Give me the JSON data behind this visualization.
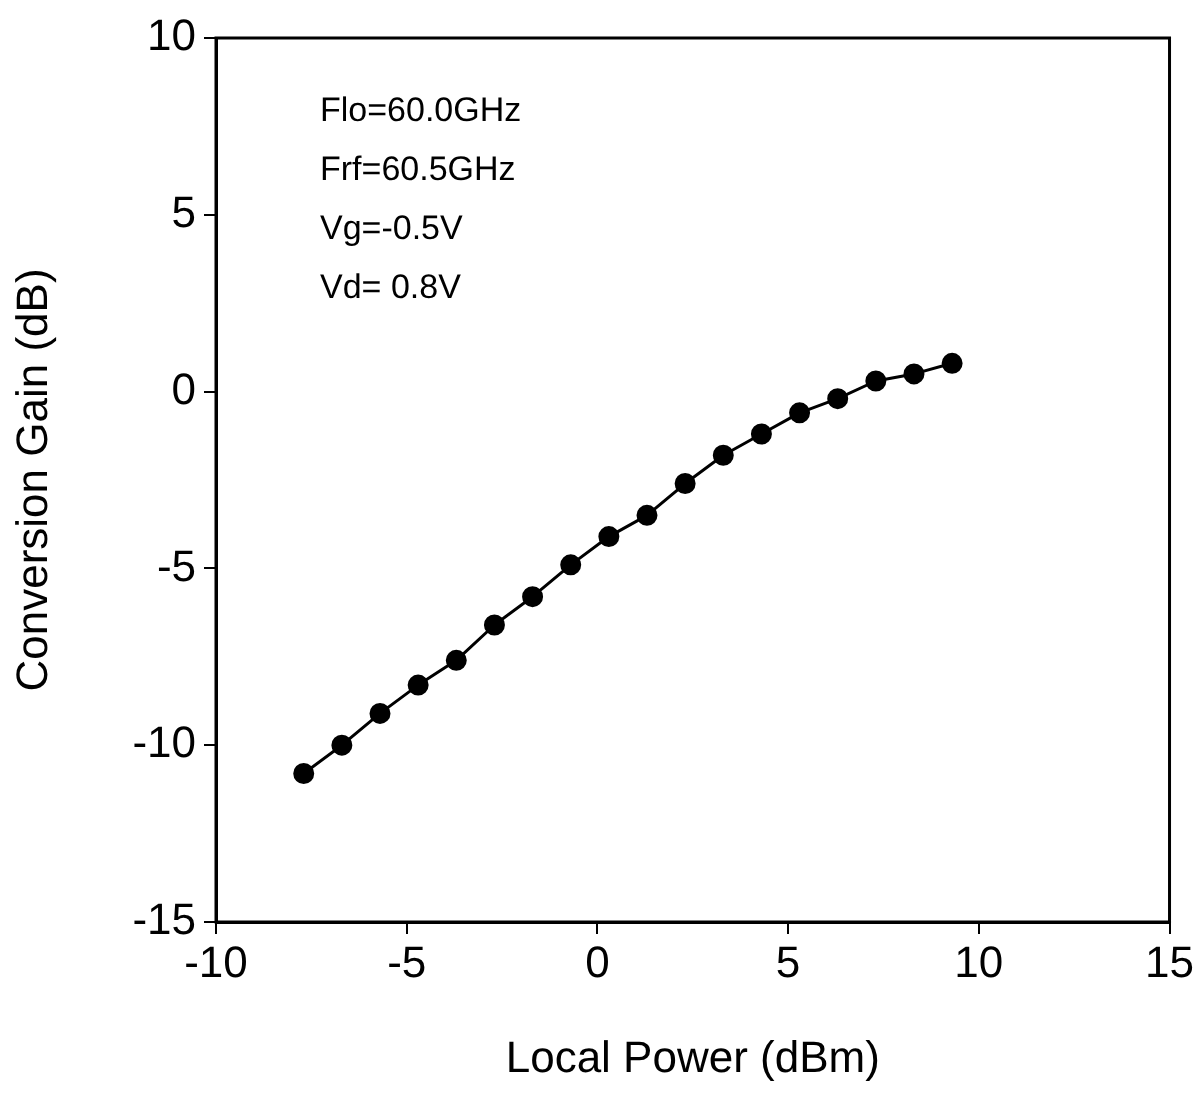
{
  "chart_data": {
    "type": "line",
    "xlabel": "Local Power (dBm)",
    "ylabel": "Conversion Gain (dB)",
    "annotations": [
      "Flo=60.0GHz",
      "Frf=60.5GHz",
      "Vg=-0.5V",
      "Vd= 0.8V"
    ],
    "x": [
      -7.7,
      -6.7,
      -5.7,
      -4.7,
      -3.7,
      -2.7,
      -1.7,
      -0.7,
      0.3,
      1.3,
      2.3,
      3.3,
      4.3,
      5.3,
      6.3,
      7.3,
      8.3,
      9.3
    ],
    "series": [
      {
        "color": "#000000",
        "values": [
          -10.8,
          -10.0,
          -9.1,
          -8.3,
          -7.6,
          -6.6,
          -5.8,
          -4.9,
          -4.1,
          -3.5,
          -2.6,
          -1.8,
          -1.2,
          -0.6,
          -0.2,
          0.3,
          0.5,
          0.8
        ]
      }
    ],
    "xlim": [
      -10,
      15
    ],
    "xticks": [
      -10,
      -5,
      0,
      5,
      10,
      15
    ],
    "ylim": [
      -15,
      10
    ],
    "yticks": [
      -15,
      -10,
      -5,
      0,
      5,
      10
    ],
    "grid": false,
    "legend": false,
    "marker": "circle",
    "line_style": "solid"
  }
}
